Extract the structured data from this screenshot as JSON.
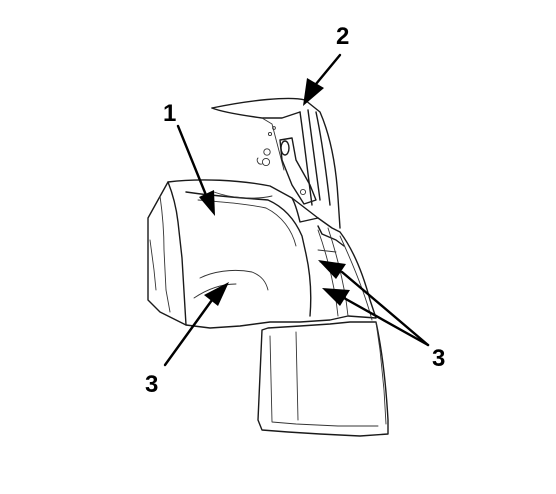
{
  "diagram": {
    "callouts": [
      {
        "id": "c1",
        "label": "1"
      },
      {
        "id": "c2",
        "label": "2"
      },
      {
        "id": "c3a",
        "label": "3"
      },
      {
        "id": "c3b",
        "label": "3"
      }
    ]
  },
  "colors": {
    "background": "#ffffff",
    "ink": "#000000"
  }
}
